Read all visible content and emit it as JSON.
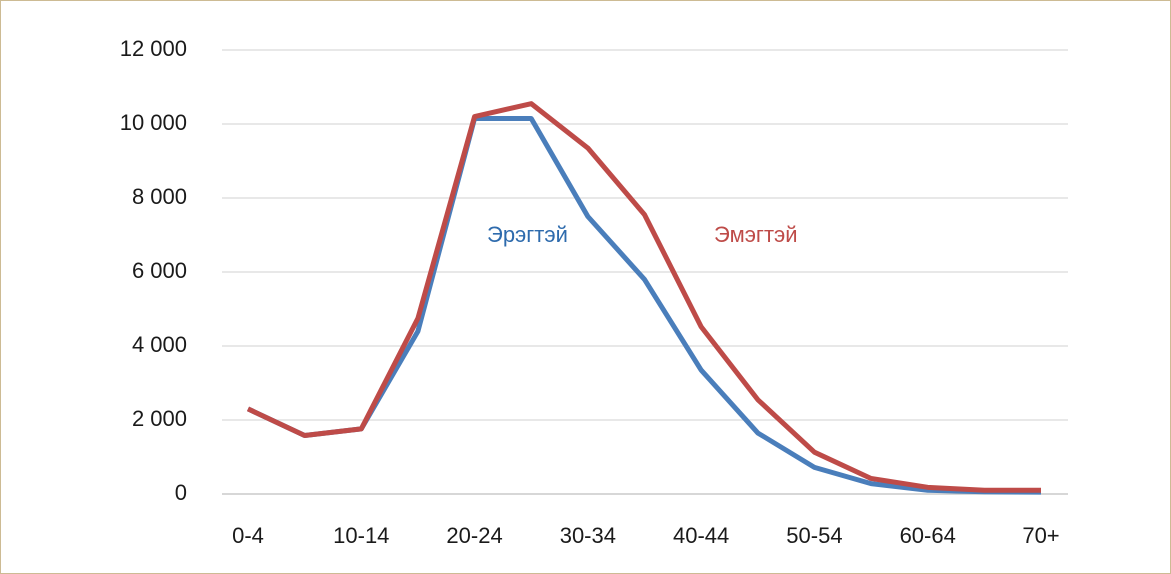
{
  "chart_data": {
    "type": "line",
    "categories": [
      "0-4",
      null,
      "10-14",
      null,
      "20-24",
      null,
      "30-34",
      null,
      "40-44",
      null,
      "50-54",
      null,
      "60-64",
      null,
      "70+"
    ],
    "series": [
      {
        "name": "Эрэгтэй",
        "color": "#4a7ebb",
        "label_color": "#2e6bad",
        "values": [
          2300,
          1580,
          1760,
          4400,
          10150,
          10150,
          7500,
          5800,
          3350,
          1650,
          720,
          280,
          100,
          60,
          50
        ]
      },
      {
        "name": "Эмэгтэй",
        "color": "#be4b48",
        "label_color": "#be4b48",
        "values": [
          2300,
          1580,
          1760,
          4750,
          10200,
          10550,
          9350,
          7550,
          4520,
          2550,
          1130,
          420,
          180,
          100,
          100
        ]
      }
    ],
    "ylim": [
      0,
      12000
    ],
    "yticks": [
      0,
      {
        "value": 2000,
        "label": "2 000"
      },
      {
        "value": 4000,
        "label": "4 000"
      },
      {
        "value": 6000,
        "label": "6 000"
      },
      {
        "value": 8000,
        "label": "8 000"
      },
      {
        "value": 10000,
        "label": "10 000"
      },
      {
        "value": 12000,
        "label": "12 000"
      }
    ],
    "grid": true
  }
}
